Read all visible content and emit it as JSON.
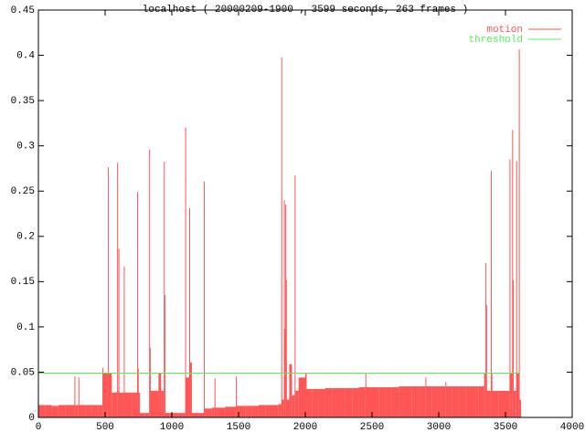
{
  "chart_data": {
    "type": "impulses",
    "title": "localhost ( 20000209-1900 , 3599 seconds, 263 frames )",
    "xlim": [
      0,
      4000
    ],
    "xticks": [
      0,
      500,
      1000,
      1500,
      2000,
      2500,
      3000,
      3500,
      4000
    ],
    "ylim": [
      0,
      0.45
    ],
    "yticks": [
      0,
      0.05,
      0.1,
      0.15,
      0.2,
      0.25,
      0.3,
      0.35,
      0.4,
      0.45
    ],
    "legend": "top-right",
    "series": [
      {
        "name": "motion",
        "color": "#ff5555",
        "style": "impulses",
        "x": [
          0,
          50,
          100,
          150,
          200,
          250,
          270,
          275,
          300,
          305,
          350,
          400,
          450,
          480,
          485,
          520,
          525,
          550,
          590,
          595,
          600,
          605,
          640,
          645,
          700,
          740,
          745,
          750,
          760,
          800,
          830,
          835,
          840,
          870,
          900,
          920,
          940,
          945,
          950,
          1000,
          1050,
          1100,
          1105,
          1130,
          1135,
          1150,
          1200,
          1240,
          1245,
          1300,
          1320,
          1325,
          1400,
          1480,
          1485,
          1550,
          1600,
          1650,
          1700,
          1750,
          1800,
          1820,
          1825,
          1840,
          1845,
          1850,
          1855,
          1860,
          1880,
          1900,
          1920,
          1925,
          1950,
          2000,
          2010,
          2050,
          2100,
          2150,
          2200,
          2250,
          2300,
          2350,
          2400,
          2450,
          2455,
          2500,
          2550,
          2600,
          2650,
          2700,
          2750,
          2800,
          2850,
          2900,
          2905,
          2950,
          3000,
          3050,
          3055,
          3100,
          3150,
          3200,
          3250,
          3300,
          3340,
          3350,
          3355,
          3360,
          3390,
          3395,
          3400,
          3450,
          3500,
          3530,
          3535,
          3550,
          3555,
          3560,
          3580,
          3585,
          3600,
          3605,
          3610
        ],
        "values": [
          0.014,
          0.014,
          0.013,
          0.014,
          0.014,
          0.014,
          0.046,
          0.014,
          0.045,
          0.014,
          0.014,
          0.014,
          0.014,
          0.056,
          0.05,
          0.282,
          0.05,
          0.028,
          0.287,
          0.03,
          0.19,
          0.028,
          0.17,
          0.028,
          0.028,
          0.254,
          0.055,
          0.028,
          0.005,
          0.005,
          0.302,
          0.078,
          0.03,
          0.03,
          0.05,
          0.03,
          0.288,
          0.138,
          0.005,
          0.005,
          0.005,
          0.327,
          0.045,
          0.236,
          0.062,
          0.005,
          0.005,
          0.266,
          0.01,
          0.011,
          0.044,
          0.011,
          0.012,
          0.046,
          0.013,
          0.013,
          0.013,
          0.014,
          0.014,
          0.014,
          0.015,
          0.406,
          0.02,
          0.245,
          0.1,
          0.24,
          0.155,
          0.02,
          0.06,
          0.025,
          0.273,
          0.03,
          0.045,
          0.05,
          0.032,
          0.032,
          0.032,
          0.033,
          0.033,
          0.033,
          0.033,
          0.033,
          0.034,
          0.05,
          0.034,
          0.034,
          0.034,
          0.034,
          0.034,
          0.035,
          0.035,
          0.035,
          0.035,
          0.045,
          0.035,
          0.035,
          0.035,
          0.04,
          0.035,
          0.035,
          0.035,
          0.035,
          0.035,
          0.035,
          0.05,
          0.174,
          0.127,
          0.03,
          0.278,
          0.05,
          0.03,
          0.03,
          0.03,
          0.291,
          0.05,
          0.324,
          0.155,
          0.03,
          0.289,
          0.05,
          0.415,
          0.02,
          0.02
        ]
      },
      {
        "name": "threshold",
        "color": "#55ee55",
        "style": "line",
        "x": [
          0,
          3610
        ],
        "values": [
          0.05,
          0.05
        ]
      }
    ]
  }
}
